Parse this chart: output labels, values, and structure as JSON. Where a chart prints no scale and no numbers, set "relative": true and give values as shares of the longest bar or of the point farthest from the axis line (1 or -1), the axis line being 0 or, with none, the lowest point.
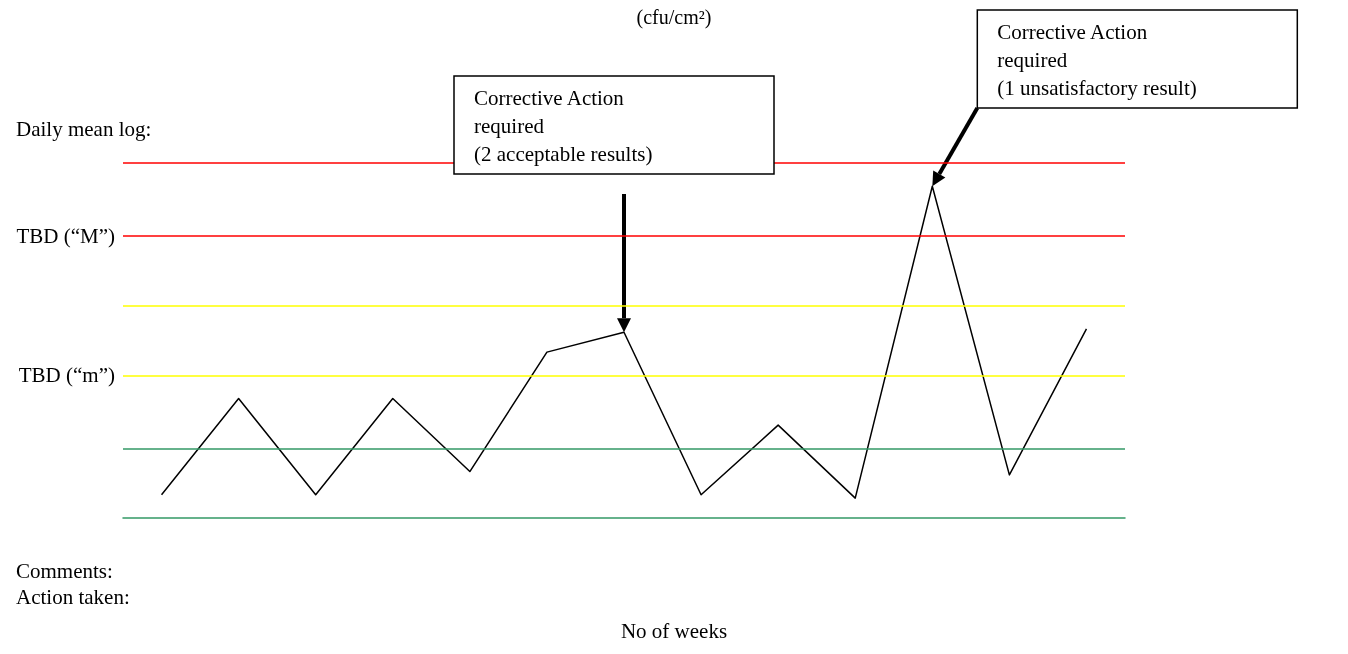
{
  "chart_data": {
    "type": "line",
    "title": "(cfu/cm²)",
    "ylabel": "Daily mean log:",
    "xlabel": "No of weeks",
    "relative": true,
    "categories": [
      null,
      null,
      null,
      null,
      null,
      null,
      null,
      null,
      null,
      null,
      null,
      null,
      null
    ],
    "series": [
      {
        "color": "#000000",
        "values": [
          0.07,
          0.36,
          0.07,
          0.36,
          0.14,
          0.5,
          0.56,
          0.07,
          0.28,
          0.06,
          1,
          0.13,
          0.57
        ]
      }
    ],
    "ref_lines": [
      {
        "axis": "y",
        "value": 1.07,
        "color": "#ff0000"
      },
      {
        "axis": "y",
        "value": 0.85,
        "label": "TBD (“M”)",
        "color": "#ff0000"
      },
      {
        "axis": "y",
        "value": 0.64,
        "color": "#ffff00"
      },
      {
        "axis": "y",
        "value": 0.43,
        "label": "TBD (“m”)",
        "color": "#ffff00"
      },
      {
        "axis": "y",
        "value": 0.21,
        "color": "#339966"
      }
    ],
    "annotations": [
      "Corrective Action\nrequired\n(2 acceptable results)",
      "Corrective Action\nrequired\n(1 unsatisfactory result)",
      "Comments:",
      "Action taken:"
    ],
    "marker": "none",
    "grid": false
  }
}
